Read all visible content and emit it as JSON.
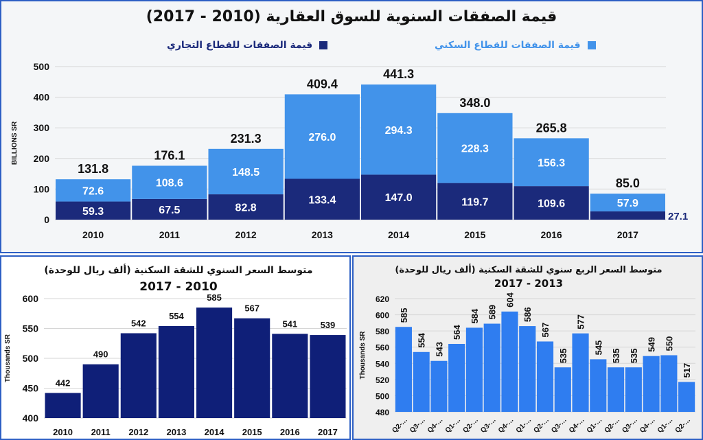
{
  "chart_data": [
    {
      "type": "bar",
      "stacked": true,
      "title": "قيمة الصفقات السنوية للسوق العقارية (2010 - 2017)",
      "ylabel": "BILLIONS SR",
      "ylim": [
        0,
        500
      ],
      "yticks": [
        0,
        100,
        200,
        300,
        400,
        500
      ],
      "grid": true,
      "legend_position": "top",
      "categories": [
        "2010",
        "2011",
        "2012",
        "2013",
        "2014",
        "2015",
        "2016",
        "2017"
      ],
      "series": [
        {
          "name": "قيمة الصفقات للقطاع التجاري",
          "color": "#1b2a7b",
          "values": [
            59.3,
            67.5,
            82.8,
            133.4,
            147.0,
            119.7,
            109.6,
            27.1
          ]
        },
        {
          "name": "قيمة الصفقات للقطاع السكني",
          "color": "#4293ea",
          "values": [
            72.6,
            108.6,
            148.5,
            276.0,
            294.3,
            228.3,
            156.3,
            57.9
          ]
        }
      ],
      "totals": [
        131.8,
        176.1,
        231.3,
        409.4,
        441.3,
        348.0,
        265.8,
        85.0
      ]
    },
    {
      "type": "bar",
      "title": "متوسط السعر السنوي للشقة السكنية  (ألف ريال للوحدة)",
      "subtitle": "2017 - 2010",
      "ylabel": "Thousands SR",
      "ylim": [
        400,
        600
      ],
      "yticks": [
        400,
        450,
        500,
        550,
        600
      ],
      "grid": true,
      "color": "#0f1f78",
      "categories": [
        "2010",
        "2011",
        "2012",
        "2013",
        "2014",
        "2015",
        "2016",
        "2017"
      ],
      "values": [
        442,
        490,
        542,
        554,
        585,
        567,
        541,
        539
      ]
    },
    {
      "type": "bar",
      "title": "متوسط السعر الربع سنوي للشقة السكنية  (ألف ريال للوحدة)",
      "subtitle": "2017 - 2013",
      "ylabel": "Thousands SR",
      "ylim": [
        480,
        620
      ],
      "yticks": [
        480,
        500,
        520,
        540,
        560,
        580,
        600,
        620
      ],
      "grid": true,
      "color": "#2f7df0",
      "categories": [
        "Q2-…",
        "Q3-…",
        "Q4-…",
        "Q1-…",
        "Q2-…",
        "Q3-…",
        "Q4-…",
        "Q1-…",
        "Q2-…",
        "Q3-…",
        "Q4-…",
        "Q1-…",
        "Q2-…",
        "Q3-…",
        "Q4-…",
        "Q1-…",
        "Q2-…"
      ],
      "values": [
        585,
        554,
        543,
        564,
        584,
        589,
        604,
        586,
        567,
        535,
        577,
        545,
        535,
        535,
        549,
        550,
        517
      ]
    }
  ]
}
